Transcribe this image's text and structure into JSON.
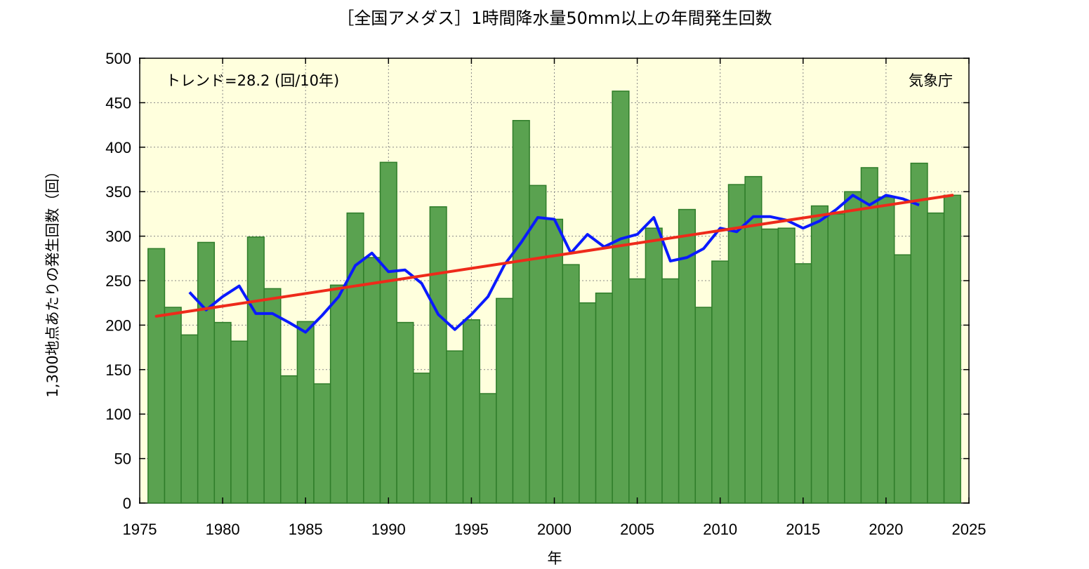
{
  "chart_data": {
    "type": "bar",
    "title": "［全国アメダス］1時間降水量50mm以上の年間発生回数",
    "xlabel": "年",
    "ylabel": "1,300地点あたりの発生回数（回）",
    "xlim": [
      1975,
      2025
    ],
    "ylim": [
      0,
      500
    ],
    "x_ticks": [
      1975,
      1980,
      1985,
      1990,
      1995,
      2000,
      2005,
      2010,
      2015,
      2020,
      2025
    ],
    "y_ticks": [
      0,
      50,
      100,
      150,
      200,
      250,
      300,
      350,
      400,
      450,
      500
    ],
    "grid": true,
    "trend_text": "トレンド=28.2 (回/10年)",
    "source_text": "気象庁",
    "colors": {
      "bar_fill": "#5aa250",
      "bar_edge": "#2f7d2a",
      "plot_bg": "#ffffdd",
      "moving_average": "#0a1aff",
      "trend": "#ee2a1a"
    },
    "bars": {
      "x": [
        1976,
        1977,
        1978,
        1979,
        1980,
        1981,
        1982,
        1983,
        1984,
        1985,
        1986,
        1987,
        1988,
        1989,
        1990,
        1991,
        1992,
        1993,
        1994,
        1995,
        1996,
        1997,
        1998,
        1999,
        2000,
        2001,
        2002,
        2003,
        2004,
        2005,
        2006,
        2007,
        2008,
        2009,
        2010,
        2011,
        2012,
        2013,
        2014,
        2015,
        2016,
        2017,
        2018,
        2019,
        2020,
        2021,
        2022,
        2023,
        2024
      ],
      "values": [
        286,
        220,
        189,
        293,
        203,
        182,
        299,
        241,
        143,
        204,
        134,
        245,
        326,
        276,
        383,
        203,
        146,
        333,
        171,
        206,
        123,
        230,
        430,
        357,
        319,
        268,
        225,
        236,
        463,
        252,
        309,
        252,
        330,
        220,
        272,
        358,
        367,
        308,
        309,
        269,
        334,
        325,
        350,
        377,
        344,
        279,
        382,
        326,
        346
      ]
    },
    "moving_average": {
      "x": [
        1978,
        1979,
        1980,
        1981,
        1982,
        1983,
        1984,
        1985,
        1986,
        1987,
        1988,
        1989,
        1990,
        1991,
        1992,
        1993,
        1994,
        1995,
        1996,
        1997,
        1998,
        1999,
        2000,
        2001,
        2002,
        2003,
        2004,
        2005,
        2006,
        2007,
        2008,
        2009,
        2010,
        2011,
        2012,
        2013,
        2014,
        2015,
        2016,
        2017,
        2018,
        2019,
        2020,
        2021,
        2022
      ],
      "values": [
        237,
        217,
        232,
        244,
        213,
        213,
        203,
        192,
        211,
        232,
        267,
        281,
        260,
        262,
        247,
        212,
        195,
        212,
        232,
        268,
        293,
        321,
        319,
        281,
        302,
        288,
        297,
        302,
        321,
        272,
        276,
        286,
        309,
        305,
        322,
        322,
        318,
        309,
        317,
        330,
        346,
        335,
        346,
        342,
        335
      ]
    },
    "trend_line": {
      "x": [
        1976,
        2024
      ],
      "values": [
        210,
        346
      ]
    }
  }
}
